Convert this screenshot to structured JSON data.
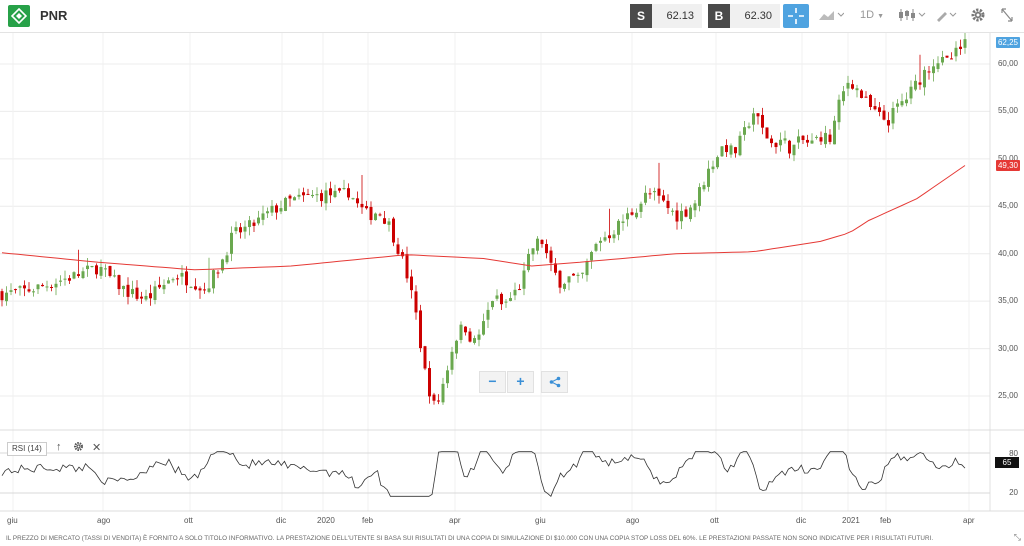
{
  "header": {
    "symbol": "PNR",
    "sell_letter": "S",
    "sell_price": "62.13",
    "buy_letter": "B",
    "buy_price": "62.30",
    "timeframe": "1D"
  },
  "chart_data": {
    "type": "candlestick",
    "instrument": "PNR",
    "y_ticks": [
      "60,00",
      "55,00",
      "50,00",
      "45,00",
      "40,00",
      "35,00",
      "30,00",
      "25,00"
    ],
    "ylim": [
      22,
      63
    ],
    "x_ticks": [
      "giu",
      "ago",
      "ott",
      "dic",
      "2020",
      "feb",
      "apr",
      "giu",
      "ago",
      "ott",
      "dic",
      "2021",
      "feb",
      "apr"
    ],
    "last_price_label": "62,25",
    "ma_label": "49,30",
    "ma_color": "#e53935",
    "up_color": "#6aa84f",
    "down_color": "#cc0000",
    "close_path": [
      [
        0,
        35.8
      ],
      [
        0.02,
        36.0
      ],
      [
        0.04,
        36.5
      ],
      [
        0.06,
        37.2
      ],
      [
        0.08,
        37.8
      ],
      [
        0.1,
        38.6
      ],
      [
        0.115,
        37.2
      ],
      [
        0.13,
        36.0
      ],
      [
        0.15,
        35.2
      ],
      [
        0.165,
        36.5
      ],
      [
        0.18,
        37.8
      ],
      [
        0.2,
        37.0
      ],
      [
        0.21,
        36.2
      ],
      [
        0.225,
        38.5
      ],
      [
        0.24,
        42.0
      ],
      [
        0.26,
        43.0
      ],
      [
        0.28,
        44.5
      ],
      [
        0.3,
        45.6
      ],
      [
        0.32,
        46.0
      ],
      [
        0.34,
        46.3
      ],
      [
        0.35,
        46.0
      ],
      [
        0.36,
        46.6
      ],
      [
        0.37,
        45.0
      ],
      [
        0.38,
        44.0
      ],
      [
        0.39,
        44.5
      ],
      [
        0.4,
        43.5
      ],
      [
        0.41,
        41.0
      ],
      [
        0.42,
        38.0
      ],
      [
        0.43,
        33.5
      ],
      [
        0.44,
        27.0
      ],
      [
        0.45,
        23.5
      ],
      [
        0.46,
        27.0
      ],
      [
        0.47,
        31.0
      ],
      [
        0.48,
        32.5
      ],
      [
        0.49,
        30.5
      ],
      [
        0.5,
        32.5
      ],
      [
        0.51,
        35.5
      ],
      [
        0.52,
        34.5
      ],
      [
        0.53,
        35.5
      ],
      [
        0.54,
        37.0
      ],
      [
        0.55,
        40.5
      ],
      [
        0.56,
        41.5
      ],
      [
        0.57,
        38.5
      ],
      [
        0.58,
        37.0
      ],
      [
        0.59,
        37.5
      ],
      [
        0.6,
        37.0
      ],
      [
        0.61,
        39.5
      ],
      [
        0.62,
        41.5
      ],
      [
        0.63,
        42.0
      ],
      [
        0.64,
        43.0
      ],
      [
        0.65,
        44.0
      ],
      [
        0.66,
        45.0
      ],
      [
        0.67,
        46.3
      ],
      [
        0.68,
        46.0
      ],
      [
        0.69,
        45.0
      ],
      [
        0.7,
        44.0
      ],
      [
        0.71,
        44.5
      ],
      [
        0.72,
        45.5
      ],
      [
        0.73,
        48.0
      ],
      [
        0.74,
        50.0
      ],
      [
        0.75,
        51.5
      ],
      [
        0.76,
        50.5
      ],
      [
        0.77,
        52.5
      ],
      [
        0.78,
        55.0
      ],
      [
        0.79,
        53.0
      ],
      [
        0.8,
        51.5
      ],
      [
        0.81,
        52.0
      ],
      [
        0.82,
        51.0
      ],
      [
        0.83,
        52.0
      ],
      [
        0.84,
        51.5
      ],
      [
        0.85,
        52.5
      ],
      [
        0.86,
        52.0
      ],
      [
        0.87,
        56.0
      ],
      [
        0.88,
        58.5
      ],
      [
        0.89,
        57.0
      ],
      [
        0.9,
        55.5
      ],
      [
        0.91,
        54.5
      ],
      [
        0.92,
        54.0
      ],
      [
        0.93,
        55.5
      ],
      [
        0.94,
        56.5
      ],
      [
        0.95,
        58.0
      ],
      [
        0.96,
        59.5
      ],
      [
        0.97,
        60.5
      ],
      [
        0.98,
        60.0
      ],
      [
        1.0,
        62.0
      ]
    ],
    "ma_path": [
      [
        0,
        40.1
      ],
      [
        0.1,
        39.1
      ],
      [
        0.2,
        38.3
      ],
      [
        0.3,
        38.7
      ],
      [
        0.4,
        39.7
      ],
      [
        0.42,
        39.9
      ],
      [
        0.5,
        39.5
      ],
      [
        0.55,
        38.7
      ],
      [
        0.6,
        39.1
      ],
      [
        0.7,
        40.0
      ],
      [
        0.78,
        40.2
      ],
      [
        0.85,
        41.3
      ],
      [
        0.88,
        42.2
      ],
      [
        0.9,
        43.5
      ],
      [
        0.95,
        45.8
      ],
      [
        1.0,
        49.3
      ]
    ]
  },
  "rsi": {
    "label": "RSI (14)",
    "value": "65",
    "levels": [
      "80",
      "20"
    ]
  },
  "disclaimer": "IL PREZZO DI MERCATO (TASSI DI VENDITA) È FORNITO A SOLO TITOLO INFORMATIVO. LA PRESTAZIONE DELL'UTENTE SI BASA SUI RISULTATI DI UNA COPIA DI SIMULAZIONE DI $10.000 CON UNA COPIA STOP LOSS DEL 60%. LE PRESTAZIONI PASSATE NON SONO INDICATIVE PER I RISULTATI FUTURI."
}
